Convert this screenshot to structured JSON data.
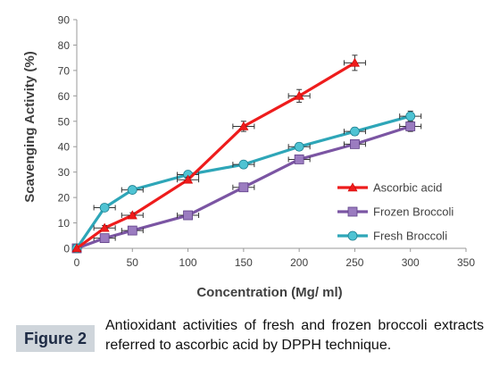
{
  "chart_data": {
    "type": "line",
    "xlabel": "Concentration (Mg/ ml)",
    "ylabel": "Scavenging Activity (%)",
    "xlim": [
      0,
      350
    ],
    "ylim": [
      0,
      90
    ],
    "xticks": [
      "0",
      "50",
      "100",
      "150",
      "200",
      "250",
      "300",
      "350"
    ],
    "yticks": [
      "0",
      "10",
      "20",
      "30",
      "40",
      "50",
      "60",
      "70",
      "80",
      "90"
    ],
    "grid": false,
    "legend_position": "bottom-right",
    "series": [
      {
        "name": "Ascorbic acid",
        "color": "#ee1c1c",
        "marker": "triangle",
        "x": [
          0,
          25,
          50,
          100,
          150,
          200,
          250
        ],
        "y": [
          0,
          8,
          13,
          27,
          48,
          60,
          73
        ],
        "err": [
          0,
          1,
          1,
          1,
          2,
          2.5,
          3
        ]
      },
      {
        "name": "Frozen Broccoli",
        "color": "#7b55a3",
        "marker": "square",
        "x": [
          0,
          25,
          50,
          100,
          150,
          200,
          250,
          300
        ],
        "y": [
          0,
          4,
          7,
          13,
          24,
          35,
          41,
          48
        ],
        "err": [
          0,
          0.5,
          0.5,
          0.5,
          1,
          1.5,
          1.5,
          2
        ]
      },
      {
        "name": "Fresh Broccoli",
        "color": "#2ea6b8",
        "marker": "circle",
        "x": [
          0,
          25,
          50,
          100,
          150,
          200,
          250,
          300
        ],
        "y": [
          0,
          16,
          23,
          29,
          33,
          40,
          46,
          52
        ],
        "err": [
          0,
          0.5,
          0.5,
          1,
          1,
          1.5,
          1.5,
          2
        ]
      }
    ]
  },
  "caption": {
    "label": "Figure 2",
    "text": "Antioxidant activities of fresh and frozen broccoli extracts referred to ascorbic acid by DPPH technique."
  }
}
